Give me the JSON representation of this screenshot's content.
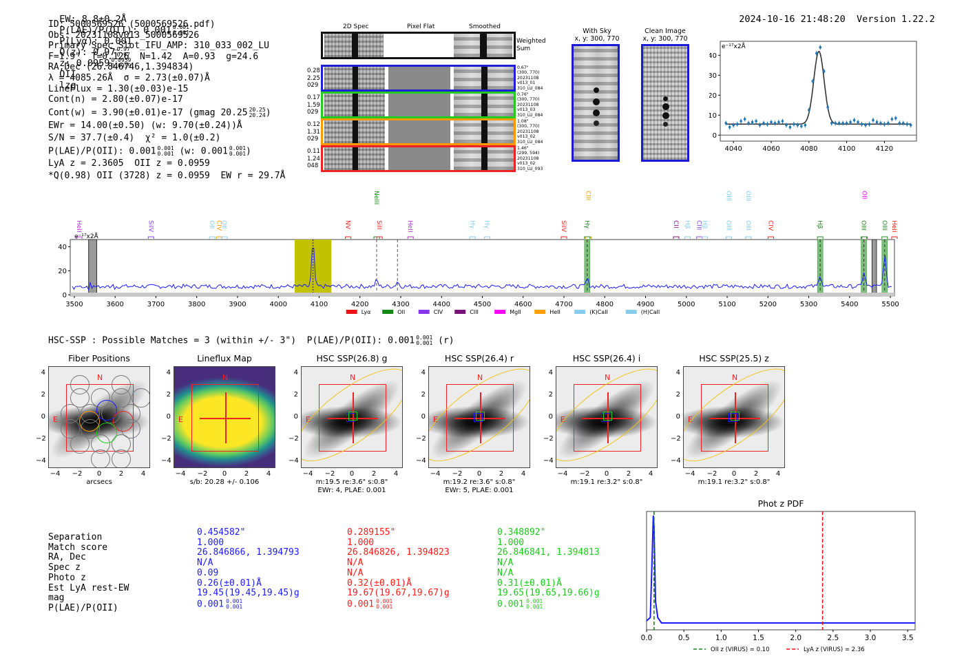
{
  "header": {
    "ew": "EW: 8.8±0.2Å",
    "plae_label": "P(LAE)/P(OII): 0.001",
    "plae_hi": "0.001",
    "plae_lo": "0.001",
    "plya": "P(Lyα): 0.001",
    "qz_label": "Q(z): 0.97",
    "qz_hi": "0.97",
    "qz_lo": "0.97",
    "z_label": "z: 0.0959",
    "z_hi": "0.0959",
    "z_lo": "0.0959",
    "z_line": "OII",
    "tag": "lzg",
    "timestamp": "2024-10-16 21:48:20",
    "version": "Version 1.22.2"
  },
  "info": {
    "lines": [
      "ID: 5000569526 (5000569526.pdf)",
      "Obs: 20231108v013_5000569526",
      "Primary Spec_Slot_IFU_AMP: 310_033_002_LU",
      "F=1.9\"  T=0.126  N=1.42  A=0.93  g=24.6",
      "RA,Dec (26.846746,1.394834)",
      "λ = 4085.26Å  σ = 2.73(±0.07)Å",
      "LineFlux = 1.30(±0.03)e-15",
      "Cont(n) = 2.80(±0.07)e-17"
    ],
    "cont_w": "Cont(w) = 3.90(±0.01)e-17 (gmag 20.25",
    "cont_w_hi": "20.25",
    "cont_w_lo": "20.24",
    "cont_w_end": ")",
    "ewr": "EWr = 14.00(±0.50) (w: 9.70(±0.24))Å",
    "sn": "S/N = 37.7(±0.4)  χ² = 1.0(±0.2)",
    "plae_a": "P(LAE)/P(OII): 0.001",
    "plae_a_hi": "0.001",
    "plae_a_lo": "0.001",
    "plae_b": "(w: 0.001",
    "plae_b_hi": "0.001",
    "plae_b_lo": "0.001",
    "plae_end": ")",
    "lya": "LyA z = 2.3605  OII z = 0.0959",
    "q": "*Q(0.98) OII (3728) z = 0.0959  EW r = 29.7Å"
  },
  "cutouts": {
    "col_titles": [
      "2D Spec",
      "Pixel Flat",
      "Smoothed"
    ],
    "weighted_label": "Weighted\nSum",
    "rows": [
      {
        "left": [
          "0.28",
          "2.25",
          "029"
        ],
        "right": [
          "0.67\"",
          "(300, 770)",
          "20231108",
          "v013_01",
          "310_LU_084"
        ],
        "color": "#1f1fd6"
      },
      {
        "left": [
          "0.17",
          "1.59",
          "029"
        ],
        "right": [
          "0.76\"",
          "(300, 770)",
          "20231108",
          "v013_03",
          "310_LU_084"
        ],
        "color": "#22cc22"
      },
      {
        "left": [
          "0.12",
          "1.31",
          "029"
        ],
        "right": [
          "1.08\"",
          "(300, 770)",
          "20231108",
          "v013_02",
          "310_LU_084"
        ],
        "color": "#ff9900"
      },
      {
        "left": [
          "0.11",
          "1.24",
          "048"
        ],
        "right": [
          "1.46\"",
          "(299, 594)",
          "20231108",
          "v013_02",
          "310_LU_093"
        ],
        "color": "#ee2222"
      }
    ],
    "with_sky_title": "With Sky",
    "with_sky_xy": "x, y: 300, 770",
    "clean_title": "Clean Image",
    "clean_xy": "x, y: 300, 770"
  },
  "hsc": {
    "summary": "HSC-SSP : Possible Matches = 3 (within +/- 3\")  P(LAE)/P(OII): 0.001",
    "summary_hi": "0.001",
    "summary_lo": "0.001",
    "summary_end": "(r)",
    "panels": [
      {
        "title": "Fiber Positions",
        "caption1": "arcsecs",
        "caption2": ""
      },
      {
        "title": "Lineflux Map",
        "caption1": "s/b: 20.28 +/- 0.106",
        "caption2": ""
      },
      {
        "title": "HSC SSP(26.8) g",
        "caption1": "m:19.5  re:3.6\"  s:0.8\"",
        "caption2": "EWr: 4, PLAE: 0.001"
      },
      {
        "title": "HSC SSP(26.4) r",
        "caption1": "m:19.2  re:3.6\"  s:0.8\"",
        "caption2": "EWr: 5, PLAE: 0.001"
      },
      {
        "title": "HSC SSP(26.4) i",
        "caption1": "m:19.1  re:3.2\"  s:0.8\"",
        "caption2": ""
      },
      {
        "title": "HSC SSP(25.5) z",
        "caption1": "m:19.1  re:3.2\"  s:0.8\"",
        "caption2": ""
      }
    ],
    "compass_n": "N",
    "compass_e": "E",
    "ticks": [
      "−4",
      "−2",
      "0",
      "2",
      "4"
    ],
    "yticks": [
      "4",
      "2",
      "0",
      "−2",
      "−4"
    ]
  },
  "matches": {
    "row_labels": [
      "Separation",
      "Match score",
      "RA, Dec",
      "Spec z",
      "Photo z",
      "Est LyA rest-EW",
      "mag",
      "P(LAE)/P(OII)"
    ],
    "columns": [
      {
        "color": "#1a1aff",
        "values": [
          "0.454582\"",
          "1.000",
          "26.846866, 1.394793",
          "N/A",
          "0.09",
          "0.26(±0.01)Å",
          "19.45(19.45,19.45)g",
          "0.001"
        ],
        "plae_hi": "0.001",
        "plae_lo": "0.001"
      },
      {
        "color": "#ff1a1a",
        "values": [
          "0.289155\"",
          "1.000",
          "26.846826, 1.394823",
          "N/A",
          "N/A",
          "0.32(±0.01)Å",
          "19.67(19.67,19.67)g",
          "0.001"
        ],
        "plae_hi": "0.001",
        "plae_lo": "0.001"
      },
      {
        "color": "#1acc1a",
        "values": [
          "0.348892\"",
          "1.000",
          "26.846841, 1.394813",
          "N/A",
          "N/A",
          "0.31(±0.01)Å",
          "19.65(19.65,19.66)g",
          "0.001"
        ],
        "plae_hi": "0.001",
        "plae_lo": "0.001"
      }
    ]
  },
  "chart_data": [
    {
      "id": "zoom-spectrum",
      "type": "line",
      "title": "",
      "ylabel_unit": "e⁻¹⁷x2Å",
      "xlim": [
        4033,
        4137
      ],
      "ylim": [
        -3,
        47
      ],
      "xticks": [
        4040,
        4060,
        4080,
        4100,
        4120
      ],
      "yticks": [
        0,
        10,
        20,
        30,
        40
      ],
      "points_x": [
        4036,
        4038,
        4040,
        4042,
        4044,
        4046,
        4048,
        4050,
        4052,
        4054,
        4056,
        4058,
        4060,
        4062,
        4064,
        4066,
        4068,
        4070,
        4072,
        4074,
        4076,
        4078,
        4080,
        4082,
        4084,
        4086,
        4088,
        4090,
        4092,
        4094,
        4096,
        4098,
        4100,
        4102,
        4104,
        4106,
        4108,
        4110,
        4112,
        4114,
        4116,
        4118,
        4120,
        4122,
        4124,
        4126,
        4128,
        4130,
        4132,
        4134
      ],
      "points_y": [
        6,
        4,
        5,
        5.5,
        7,
        8,
        6,
        6.5,
        7,
        5,
        6,
        5.5,
        6.5,
        6,
        6.5,
        7,
        5,
        4,
        5.5,
        5,
        4.5,
        5,
        12.5,
        27,
        41,
        44,
        32,
        14,
        6,
        6,
        6,
        6,
        6,
        6.5,
        7.5,
        6.5,
        5.5,
        5,
        5.5,
        7.5,
        6.5,
        6,
        5.5,
        6,
        8,
        8.5,
        6,
        6,
        5.5,
        5
      ],
      "fit": {
        "continuum": 5.5,
        "peak": 42,
        "center": 4085.3,
        "sigma": 2.73
      }
    },
    {
      "id": "full-spectrum",
      "type": "line",
      "title": "",
      "ylabel_unit": "e⁻¹⁷x2Å",
      "xlim": [
        3490,
        5510
      ],
      "ylim": [
        -1,
        46
      ],
      "xticks": [
        3500,
        3600,
        3700,
        3800,
        3900,
        4000,
        4100,
        4200,
        4300,
        4400,
        4500,
        4600,
        4700,
        4800,
        4900,
        5000,
        5100,
        5200,
        5300,
        5400,
        5500
      ],
      "yticks": [
        0,
        20,
        40
      ],
      "continuum": 7,
      "emission_lines": [
        {
          "wave": 4085,
          "height": 44
        },
        {
          "wave": 4241,
          "height": 12
        },
        {
          "wave": 4292,
          "height": 11
        },
        {
          "wave": 4757,
          "height": 13
        },
        {
          "wave": 5328,
          "height": 17
        },
        {
          "wave": 5435,
          "height": 19
        },
        {
          "wave": 5486,
          "height": 33
        }
      ],
      "highlight_band": [
        4040,
        4130
      ],
      "green_bands": [
        4757,
        5328,
        5435,
        5486
      ],
      "masked_bands": [
        [
          3535,
          3555
        ],
        [
          5455,
          5466
        ]
      ],
      "dashed_lines": [
        4241,
        4292
      ],
      "line_labels": [
        {
          "name": "HeII",
          "wave": 3512,
          "row": 1,
          "color": "#aa33cc"
        },
        {
          "name": "SiIV",
          "wave": 3688,
          "row": 1,
          "color": "#8844ee"
        },
        {
          "name": "OII",
          "wave": 3838,
          "row": 1,
          "color": "#88ccee"
        },
        {
          "name": "CIV",
          "wave": 3855,
          "row": 1,
          "color": "#ff9900"
        },
        {
          "name": "OII",
          "wave": 3868,
          "row": 1,
          "color": "#88ccee"
        },
        {
          "name": "NV",
          "wave": 4171,
          "row": 1,
          "color": "#ee2222"
        },
        {
          "name": "NeIII",
          "wave": 4241,
          "row": 0,
          "color": "#228822"
        },
        {
          "name": "SiII",
          "wave": 4248,
          "row": 1,
          "color": "#ee2222"
        },
        {
          "name": "HeII",
          "wave": 4324,
          "row": 1,
          "color": "#aa33cc"
        },
        {
          "name": "Hγ",
          "wave": 4476,
          "row": 1,
          "color": "#88ccee"
        },
        {
          "name": "Hγ",
          "wave": 4512,
          "row": 1,
          "color": "#88ccee"
        },
        {
          "name": "SiIV",
          "wave": 4700,
          "row": 1,
          "color": "#ee2222"
        },
        {
          "name": "CIII",
          "wave": 4760,
          "row": 0,
          "color": "#ff9900"
        },
        {
          "name": "Hγ",
          "wave": 4757,
          "row": 1,
          "color": "#228822"
        },
        {
          "name": "CII",
          "wave": 4975,
          "row": 1,
          "color": "#881188"
        },
        {
          "name": "Hβ",
          "wave": 5003,
          "row": 1,
          "color": "#88ccee"
        },
        {
          "name": "CIII",
          "wave": 5032,
          "row": 1,
          "color": "#8844ee"
        },
        {
          "name": "Hβ",
          "wave": 5045,
          "row": 1,
          "color": "#88ccee"
        },
        {
          "name": "OIII",
          "wave": 5104,
          "row": 1,
          "color": "#88ccee"
        },
        {
          "name": "OIII",
          "wave": 5104,
          "row": 0,
          "color": "#88ccee"
        },
        {
          "name": "OIII",
          "wave": 5152,
          "row": 1,
          "color": "#88ccee"
        },
        {
          "name": "OIII",
          "wave": 5152,
          "row": 0,
          "color": "#88ccee"
        },
        {
          "name": "CIV",
          "wave": 5207,
          "row": 1,
          "color": "#ee2222"
        },
        {
          "name": "Hβ",
          "wave": 5328,
          "row": 1,
          "color": "#228822"
        },
        {
          "name": "OII",
          "wave": 5437,
          "row": 0,
          "color": "#ff00ff"
        },
        {
          "name": "OIII",
          "wave": 5435,
          "row": 1,
          "color": "#228822"
        },
        {
          "name": "OIII",
          "wave": 5486,
          "row": 1,
          "color": "#228822"
        },
        {
          "name": "HeII",
          "wave": 5510,
          "row": 1,
          "color": "#ee2222"
        }
      ],
      "legend": [
        {
          "label": "Lyα",
          "color": "#ee1111"
        },
        {
          "label": "OII",
          "color": "#118811"
        },
        {
          "label": "CIV",
          "color": "#8833ee"
        },
        {
          "label": "CIII",
          "color": "#771177"
        },
        {
          "label": "MgII",
          "color": "#ff00ff"
        },
        {
          "label": "HeII",
          "color": "#ffa000"
        },
        {
          "label": "(K)CaII",
          "color": "#88ccee"
        },
        {
          "label": "(H)CaII",
          "color": "#88ccee"
        }
      ],
      "legend_position": "bottom"
    },
    {
      "id": "phot-z-pdf",
      "type": "line",
      "title": "Phot z PDF",
      "xlim": [
        0.0,
        3.6
      ],
      "xticks": [
        0.0,
        0.5,
        1.0,
        1.5,
        2.0,
        2.5,
        3.0,
        3.5
      ],
      "pdf_x": [
        0.0,
        0.05,
        0.07,
        0.09,
        0.1,
        0.12,
        0.15,
        0.2,
        0.3,
        3.6
      ],
      "pdf_y": [
        0.02,
        0.05,
        0.5,
        1.0,
        0.9,
        0.2,
        0.05,
        0.0,
        0.0,
        0.0
      ],
      "vlines": [
        {
          "label": "OII z (VIRUS) = 0.10",
          "value": 0.1,
          "color": "#118811"
        },
        {
          "label": "LyA z (VIRUS) = 2.36",
          "value": 2.36,
          "color": "#ee1111"
        }
      ],
      "legend_position": "bottom"
    }
  ]
}
